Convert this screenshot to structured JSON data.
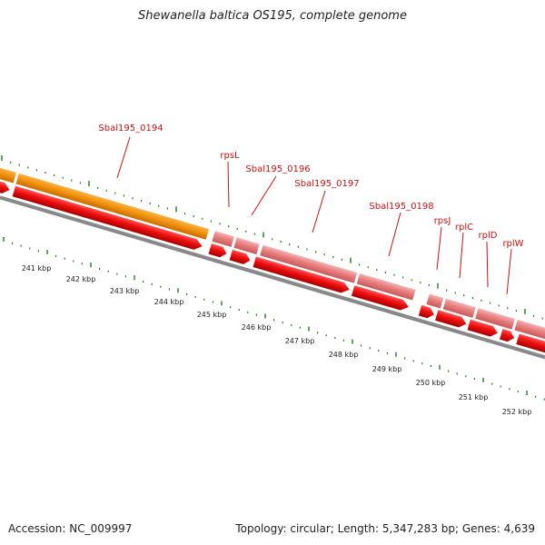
{
  "title": "Shewanella baltica OS195, complete genome",
  "footer": {
    "accession": "Accession: NC_009997",
    "topology": "Topology: circular; Length: 5,347,283 bp; Genes: 4,639"
  },
  "colors": {
    "backbone": "#8a8a8a",
    "tick": "#1f7a1f",
    "cds_forward": "#e87e7e",
    "cds_highlight": "#f39410",
    "cds_reverse": "#ee0e0e",
    "label": "#cc1111",
    "text": "#222222"
  },
  "gene_labels": [
    "Sbal195_0194",
    "rpsL",
    "Sbal195_0196",
    "Sbal195_0197",
    "Sbal195_0198",
    "rpsJ",
    "rplC",
    "rplD",
    "rplW"
  ],
  "kbp_labels": [
    "241 kbp",
    "242 kbp",
    "243 kbp",
    "244 kbp",
    "245 kbp",
    "246 kbp",
    "247 kbp",
    "248 kbp",
    "249 kbp",
    "250 kbp",
    "251 kbp",
    "252 kbp"
  ]
}
